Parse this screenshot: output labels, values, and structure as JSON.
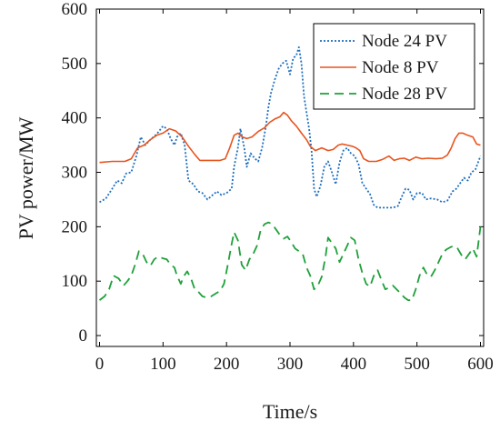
{
  "chart_data": {
    "type": "line",
    "title": "",
    "xlabel": "Time/s",
    "ylabel": "PV power/MW",
    "xlim": [
      -5,
      605
    ],
    "ylim": [
      -20,
      600
    ],
    "x_ticks": [
      0,
      100,
      200,
      300,
      400,
      500,
      600
    ],
    "y_ticks": [
      0,
      100,
      200,
      300,
      400,
      500,
      600
    ],
    "x_tick_labels": [
      "0",
      "100",
      "200",
      "300",
      "400",
      "500",
      "600"
    ],
    "y_tick_labels": [
      "0",
      "100",
      "200",
      "300",
      "400",
      "500",
      "600"
    ],
    "grid": false,
    "legend_position": "top-right",
    "series": [
      {
        "name": "Node 24 PV",
        "color": "#1f6fbf",
        "dash": "dotted",
        "points": [
          [
            0,
            245
          ],
          [
            10,
            252
          ],
          [
            20,
            270
          ],
          [
            28,
            285
          ],
          [
            35,
            280
          ],
          [
            42,
            298
          ],
          [
            50,
            300
          ],
          [
            58,
            330
          ],
          [
            65,
            365
          ],
          [
            72,
            350
          ],
          [
            80,
            360
          ],
          [
            90,
            370
          ],
          [
            100,
            385
          ],
          [
            106,
            380
          ],
          [
            112,
            362
          ],
          [
            118,
            350
          ],
          [
            122,
            365
          ],
          [
            128,
            372
          ],
          [
            134,
            350
          ],
          [
            140,
            285
          ],
          [
            148,
            278
          ],
          [
            155,
            265
          ],
          [
            162,
            262
          ],
          [
            170,
            250
          ],
          [
            178,
            258
          ],
          [
            185,
            265
          ],
          [
            192,
            258
          ],
          [
            200,
            262
          ],
          [
            208,
            270
          ],
          [
            212,
            310
          ],
          [
            218,
            345
          ],
          [
            222,
            380
          ],
          [
            228,
            345
          ],
          [
            232,
            310
          ],
          [
            238,
            335
          ],
          [
            245,
            325
          ],
          [
            250,
            320
          ],
          [
            256,
            345
          ],
          [
            262,
            385
          ],
          [
            266,
            420
          ],
          [
            270,
            445
          ],
          [
            276,
            470
          ],
          [
            282,
            490
          ],
          [
            288,
            500
          ],
          [
            294,
            505
          ],
          [
            300,
            480
          ],
          [
            305,
            510
          ],
          [
            310,
            515
          ],
          [
            314,
            530
          ],
          [
            318,
            500
          ],
          [
            322,
            440
          ],
          [
            326,
            410
          ],
          [
            330,
            380
          ],
          [
            334,
            340
          ],
          [
            338,
            270
          ],
          [
            342,
            255
          ],
          [
            348,
            275
          ],
          [
            354,
            310
          ],
          [
            360,
            320
          ],
          [
            366,
            300
          ],
          [
            372,
            278
          ],
          [
            378,
            318
          ],
          [
            384,
            340
          ],
          [
            390,
            345
          ],
          [
            396,
            335
          ],
          [
            402,
            330
          ],
          [
            408,
            315
          ],
          [
            414,
            280
          ],
          [
            420,
            270
          ],
          [
            426,
            260
          ],
          [
            432,
            240
          ],
          [
            438,
            235
          ],
          [
            450,
            235
          ],
          [
            462,
            235
          ],
          [
            470,
            238
          ],
          [
            476,
            255
          ],
          [
            482,
            270
          ],
          [
            488,
            268
          ],
          [
            494,
            250
          ],
          [
            500,
            262
          ],
          [
            508,
            262
          ],
          [
            514,
            250
          ],
          [
            522,
            252
          ],
          [
            532,
            250
          ],
          [
            540,
            245
          ],
          [
            548,
            248
          ],
          [
            556,
            265
          ],
          [
            562,
            270
          ],
          [
            568,
            280
          ],
          [
            574,
            290
          ],
          [
            580,
            285
          ],
          [
            586,
            300
          ],
          [
            592,
            305
          ],
          [
            600,
            330
          ]
        ]
      },
      {
        "name": "Node 8 PV",
        "color": "#e8541e",
        "dash": "solid",
        "points": [
          [
            0,
            318
          ],
          [
            20,
            320
          ],
          [
            40,
            320
          ],
          [
            50,
            325
          ],
          [
            55,
            335
          ],
          [
            60,
            345
          ],
          [
            70,
            350
          ],
          [
            80,
            360
          ],
          [
            90,
            368
          ],
          [
            100,
            372
          ],
          [
            110,
            380
          ],
          [
            120,
            376
          ],
          [
            130,
            365
          ],
          [
            140,
            348
          ],
          [
            150,
            333
          ],
          [
            158,
            322
          ],
          [
            170,
            322
          ],
          [
            190,
            322
          ],
          [
            198,
            325
          ],
          [
            205,
            345
          ],
          [
            212,
            368
          ],
          [
            218,
            372
          ],
          [
            225,
            365
          ],
          [
            232,
            362
          ],
          [
            240,
            365
          ],
          [
            250,
            375
          ],
          [
            260,
            382
          ],
          [
            268,
            392
          ],
          [
            276,
            398
          ],
          [
            284,
            402
          ],
          [
            290,
            410
          ],
          [
            296,
            405
          ],
          [
            302,
            395
          ],
          [
            310,
            385
          ],
          [
            318,
            372
          ],
          [
            326,
            360
          ],
          [
            332,
            348
          ],
          [
            340,
            340
          ],
          [
            350,
            345
          ],
          [
            360,
            340
          ],
          [
            368,
            342
          ],
          [
            376,
            350
          ],
          [
            382,
            352
          ],
          [
            390,
            350
          ],
          [
            398,
            348
          ],
          [
            404,
            345
          ],
          [
            410,
            340
          ],
          [
            416,
            325
          ],
          [
            424,
            320
          ],
          [
            436,
            320
          ],
          [
            446,
            324
          ],
          [
            456,
            330
          ],
          [
            464,
            322
          ],
          [
            472,
            325
          ],
          [
            480,
            326
          ],
          [
            488,
            322
          ],
          [
            498,
            328
          ],
          [
            508,
            325
          ],
          [
            518,
            326
          ],
          [
            530,
            325
          ],
          [
            540,
            326
          ],
          [
            548,
            332
          ],
          [
            554,
            345
          ],
          [
            560,
            362
          ],
          [
            566,
            372
          ],
          [
            572,
            372
          ],
          [
            580,
            368
          ],
          [
            588,
            365
          ],
          [
            594,
            352
          ],
          [
            600,
            350
          ]
        ]
      },
      {
        "name": "Node 28 PV",
        "color": "#1fa03a",
        "dash": "dashed",
        "points": [
          [
            0,
            65
          ],
          [
            8,
            72
          ],
          [
            15,
            85
          ],
          [
            22,
            110
          ],
          [
            30,
            105
          ],
          [
            38,
            92
          ],
          [
            44,
            100
          ],
          [
            50,
            110
          ],
          [
            56,
            130
          ],
          [
            62,
            155
          ],
          [
            68,
            150
          ],
          [
            74,
            135
          ],
          [
            80,
            128
          ],
          [
            86,
            140
          ],
          [
            92,
            145
          ],
          [
            100,
            142
          ],
          [
            106,
            140
          ],
          [
            112,
            130
          ],
          [
            118,
            125
          ],
          [
            122,
            110
          ],
          [
            128,
            95
          ],
          [
            132,
            108
          ],
          [
            138,
            118
          ],
          [
            144,
            105
          ],
          [
            150,
            85
          ],
          [
            156,
            80
          ],
          [
            162,
            72
          ],
          [
            168,
            70
          ],
          [
            176,
            72
          ],
          [
            184,
            78
          ],
          [
            190,
            82
          ],
          [
            196,
            95
          ],
          [
            202,
            130
          ],
          [
            208,
            168
          ],
          [
            212,
            190
          ],
          [
            218,
            175
          ],
          [
            224,
            130
          ],
          [
            230,
            120
          ],
          [
            236,
            140
          ],
          [
            242,
            150
          ],
          [
            248,
            165
          ],
          [
            254,
            195
          ],
          [
            260,
            205
          ],
          [
            266,
            208
          ],
          [
            272,
            205
          ],
          [
            278,
            195
          ],
          [
            284,
            185
          ],
          [
            290,
            178
          ],
          [
            296,
            182
          ],
          [
            302,
            172
          ],
          [
            308,
            160
          ],
          [
            314,
            155
          ],
          [
            320,
            150
          ],
          [
            326,
            125
          ],
          [
            332,
            110
          ],
          [
            338,
            85
          ],
          [
            344,
            92
          ],
          [
            350,
            108
          ],
          [
            356,
            145
          ],
          [
            360,
            180
          ],
          [
            366,
            170
          ],
          [
            372,
            160
          ],
          [
            378,
            135
          ],
          [
            384,
            150
          ],
          [
            390,
            165
          ],
          [
            396,
            180
          ],
          [
            402,
            175
          ],
          [
            408,
            140
          ],
          [
            414,
            115
          ],
          [
            420,
            95
          ],
          [
            426,
            90
          ],
          [
            432,
            110
          ],
          [
            438,
            120
          ],
          [
            444,
            102
          ],
          [
            450,
            85
          ],
          [
            456,
            88
          ],
          [
            462,
            92
          ],
          [
            468,
            85
          ],
          [
            474,
            78
          ],
          [
            480,
            70
          ],
          [
            486,
            65
          ],
          [
            492,
            65
          ],
          [
            498,
            85
          ],
          [
            504,
            110
          ],
          [
            510,
            125
          ],
          [
            516,
            112
          ],
          [
            522,
            108
          ],
          [
            528,
            120
          ],
          [
            534,
            135
          ],
          [
            540,
            150
          ],
          [
            546,
            158
          ],
          [
            552,
            162
          ],
          [
            558,
            165
          ],
          [
            564,
            160
          ],
          [
            570,
            148
          ],
          [
            576,
            140
          ],
          [
            582,
            150
          ],
          [
            588,
            160
          ],
          [
            594,
            145
          ],
          [
            600,
            200
          ]
        ]
      }
    ]
  }
}
